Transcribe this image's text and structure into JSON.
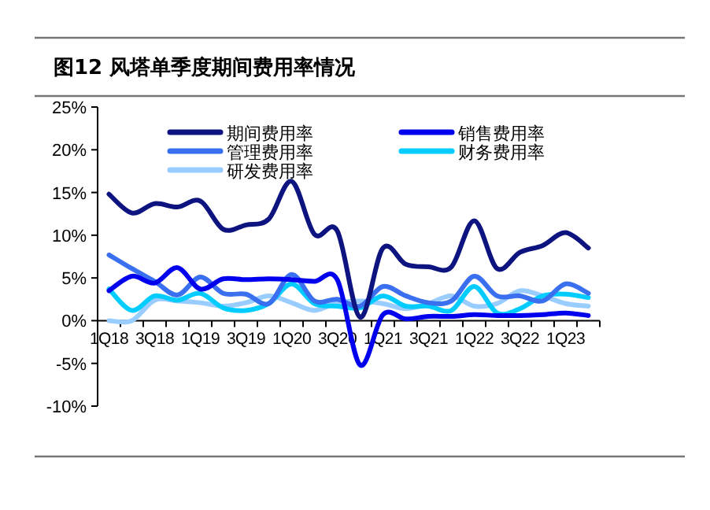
{
  "chart_data": {
    "type": "line",
    "title": "图12 风塔单季度期间费用率情况",
    "categories": [
      "1Q18",
      null,
      "3Q18",
      null,
      "1Q19",
      null,
      "3Q19",
      null,
      "1Q20",
      null,
      "3Q20",
      null,
      "1Q21",
      null,
      "3Q21",
      null,
      "1Q22",
      null,
      "3Q22",
      null,
      "1Q23",
      null
    ],
    "series": [
      {
        "name": "期间费用率",
        "color": "#0d1480",
        "values": [
          14.8,
          12.6,
          13.7,
          13.3,
          14.0,
          10.7,
          11.2,
          11.9,
          16.3,
          10.1,
          10.5,
          0.4,
          8.5,
          6.6,
          6.3,
          6.3,
          11.7,
          6.1,
          8.0,
          8.8,
          10.3,
          8.5
        ]
      },
      {
        "name": "销售费用率",
        "color": "#0000ee",
        "values": [
          3.5,
          5.2,
          4.4,
          6.2,
          3.7,
          4.9,
          4.8,
          4.9,
          4.8,
          4.6,
          4.8,
          -5.2,
          0.7,
          0.2,
          0.5,
          0.5,
          0.7,
          0.6,
          0.6,
          0.7,
          0.9,
          0.6
        ]
      },
      {
        "name": "管理费用率",
        "color": "#3a6ff0",
        "values": [
          7.7,
          6.1,
          4.6,
          3.0,
          5.1,
          3.2,
          3.1,
          2.0,
          5.4,
          2.3,
          2.5,
          1.7,
          4.0,
          2.9,
          2.1,
          2.3,
          5.2,
          2.9,
          2.9,
          2.3,
          4.3,
          3.2
        ]
      },
      {
        "name": "财务费用率",
        "color": "#00ccff",
        "values": [
          3.7,
          1.2,
          2.9,
          2.4,
          3.2,
          1.5,
          1.2,
          2.0,
          4.3,
          2.0,
          1.7,
          1.5,
          2.9,
          1.7,
          1.7,
          1.2,
          4.0,
          0.9,
          1.4,
          2.9,
          3.1,
          2.7
        ]
      },
      {
        "name": "研发费用率",
        "color": "#99ccff",
        "values": [
          0.0,
          0.0,
          2.4,
          2.3,
          2.1,
          1.7,
          2.1,
          2.9,
          2.1,
          1.2,
          2.1,
          2.3,
          2.0,
          1.4,
          2.0,
          2.9,
          1.7,
          2.0,
          3.5,
          2.9,
          2.0,
          1.7
        ]
      }
    ],
    "ylim": [
      -10,
      25
    ],
    "yticks": [
      {
        "value": -10,
        "label": "-10%"
      },
      {
        "value": -5,
        "label": "-5%"
      },
      {
        "value": 0,
        "label": "0%"
      },
      {
        "value": 5,
        "label": "5%"
      },
      {
        "value": 10,
        "label": "10%"
      },
      {
        "value": 15,
        "label": "15%"
      },
      {
        "value": 20,
        "label": "20%"
      },
      {
        "value": 25,
        "label": "25%"
      }
    ],
    "legend": "top",
    "grid": false,
    "marker": "none",
    "line_style": "solid"
  }
}
